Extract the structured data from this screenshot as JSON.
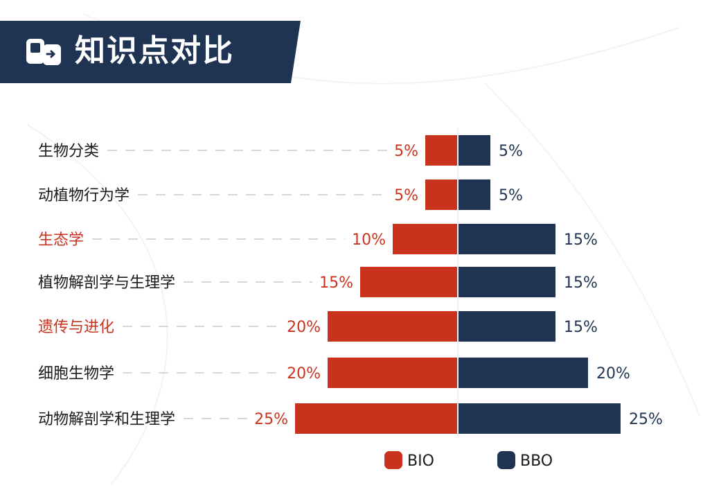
{
  "header": {
    "title": "知识点对比",
    "icon": "flip-card-icon"
  },
  "colors": {
    "header_bg": "#1e3452",
    "bio": "#c9331d",
    "bbo": "#1e3452",
    "label_default": "#1a1a1a",
    "label_highlight": "#c9331d",
    "guide": "#cccccc",
    "center_line": "#e3e3e3"
  },
  "chart_data": {
    "type": "bar",
    "orientation": "horizontal-diverging",
    "categories": [
      "生物分类",
      "动植物行为学",
      "生态学",
      "植物解剖学与生理学",
      "遗传与进化",
      "细胞生物学",
      "动物解剖学和生理学"
    ],
    "highlighted": [
      "生态学",
      "遗传与进化"
    ],
    "value_unit": "%",
    "series": [
      {
        "name": "BIO",
        "values": [
          5,
          5,
          10,
          15,
          20,
          20,
          25
        ],
        "labels": [
          "5%",
          "5%",
          "10%",
          "15%",
          "20%",
          "20%",
          "25%"
        ],
        "side": "left"
      },
      {
        "name": "BBO",
        "values": [
          5,
          5,
          15,
          15,
          15,
          20,
          25
        ],
        "labels": [
          "5%",
          "5%",
          "15%",
          "15%",
          "15%",
          "20%",
          "25%"
        ],
        "side": "right"
      }
    ],
    "legend": {
      "position": "bottom-right",
      "entries": [
        "BIO",
        "BBO"
      ]
    }
  }
}
